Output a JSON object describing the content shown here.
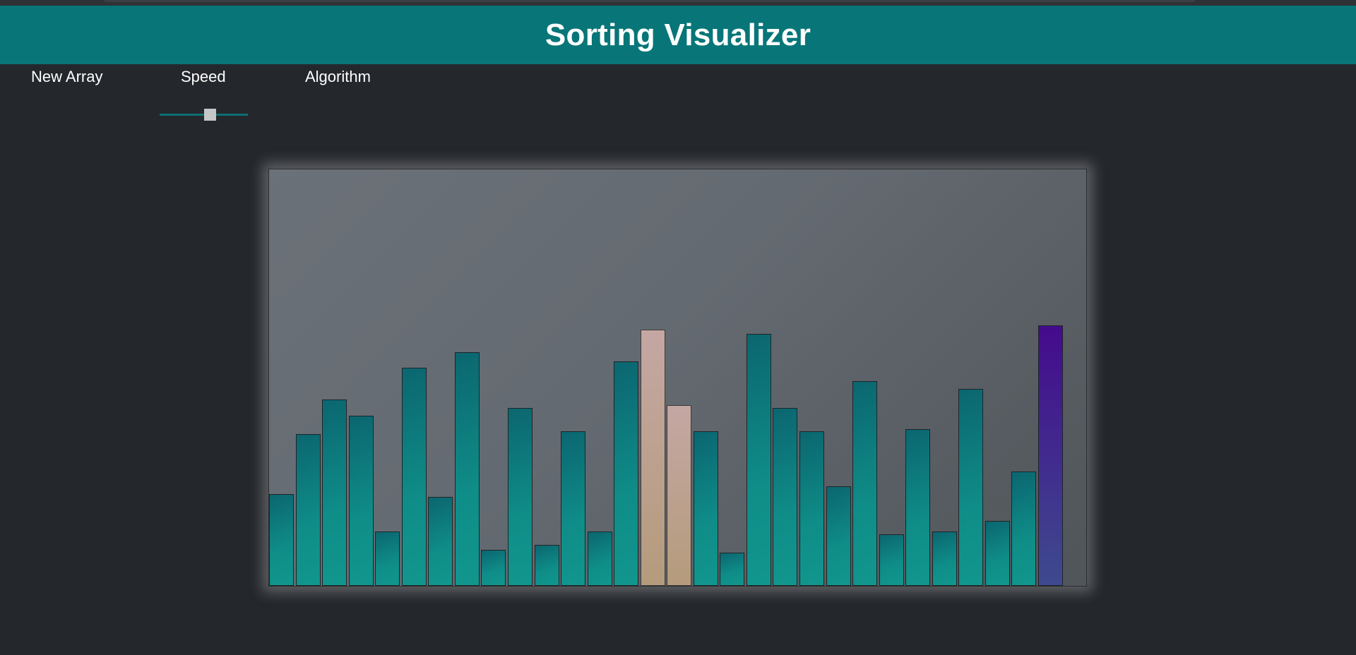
{
  "header": {
    "title": "Sorting Visualizer"
  },
  "controls": {
    "new_array_label": "New Array",
    "speed_label": "Speed",
    "algorithm_label": "Algorithm",
    "speed_value": 0.58
  },
  "colors": {
    "header_bg": "#087678",
    "page_bg": "#24272c",
    "bar_default": "#0f8d88",
    "bar_compare": "#c4a7a3",
    "bar_active": "#440b8d"
  },
  "bars": {
    "max_value": 592,
    "items": [
      {
        "value": 130,
        "state": "default"
      },
      {
        "value": 216,
        "state": "default"
      },
      {
        "value": 265,
        "state": "default"
      },
      {
        "value": 242,
        "state": "default"
      },
      {
        "value": 77,
        "state": "default"
      },
      {
        "value": 310,
        "state": "default"
      },
      {
        "value": 126,
        "state": "default"
      },
      {
        "value": 332,
        "state": "default"
      },
      {
        "value": 51,
        "state": "default"
      },
      {
        "value": 253,
        "state": "default"
      },
      {
        "value": 58,
        "state": "default"
      },
      {
        "value": 220,
        "state": "default"
      },
      {
        "value": 77,
        "state": "default"
      },
      {
        "value": 319,
        "state": "default"
      },
      {
        "value": 364,
        "state": "compare"
      },
      {
        "value": 257,
        "state": "compare"
      },
      {
        "value": 220,
        "state": "default"
      },
      {
        "value": 47,
        "state": "default"
      },
      {
        "value": 358,
        "state": "default"
      },
      {
        "value": 253,
        "state": "default"
      },
      {
        "value": 220,
        "state": "default"
      },
      {
        "value": 141,
        "state": "default"
      },
      {
        "value": 291,
        "state": "default"
      },
      {
        "value": 73,
        "state": "default"
      },
      {
        "value": 223,
        "state": "default"
      },
      {
        "value": 77,
        "state": "default"
      },
      {
        "value": 280,
        "state": "default"
      },
      {
        "value": 92,
        "state": "default"
      },
      {
        "value": 163,
        "state": "default"
      },
      {
        "value": 370,
        "state": "active"
      }
    ]
  }
}
